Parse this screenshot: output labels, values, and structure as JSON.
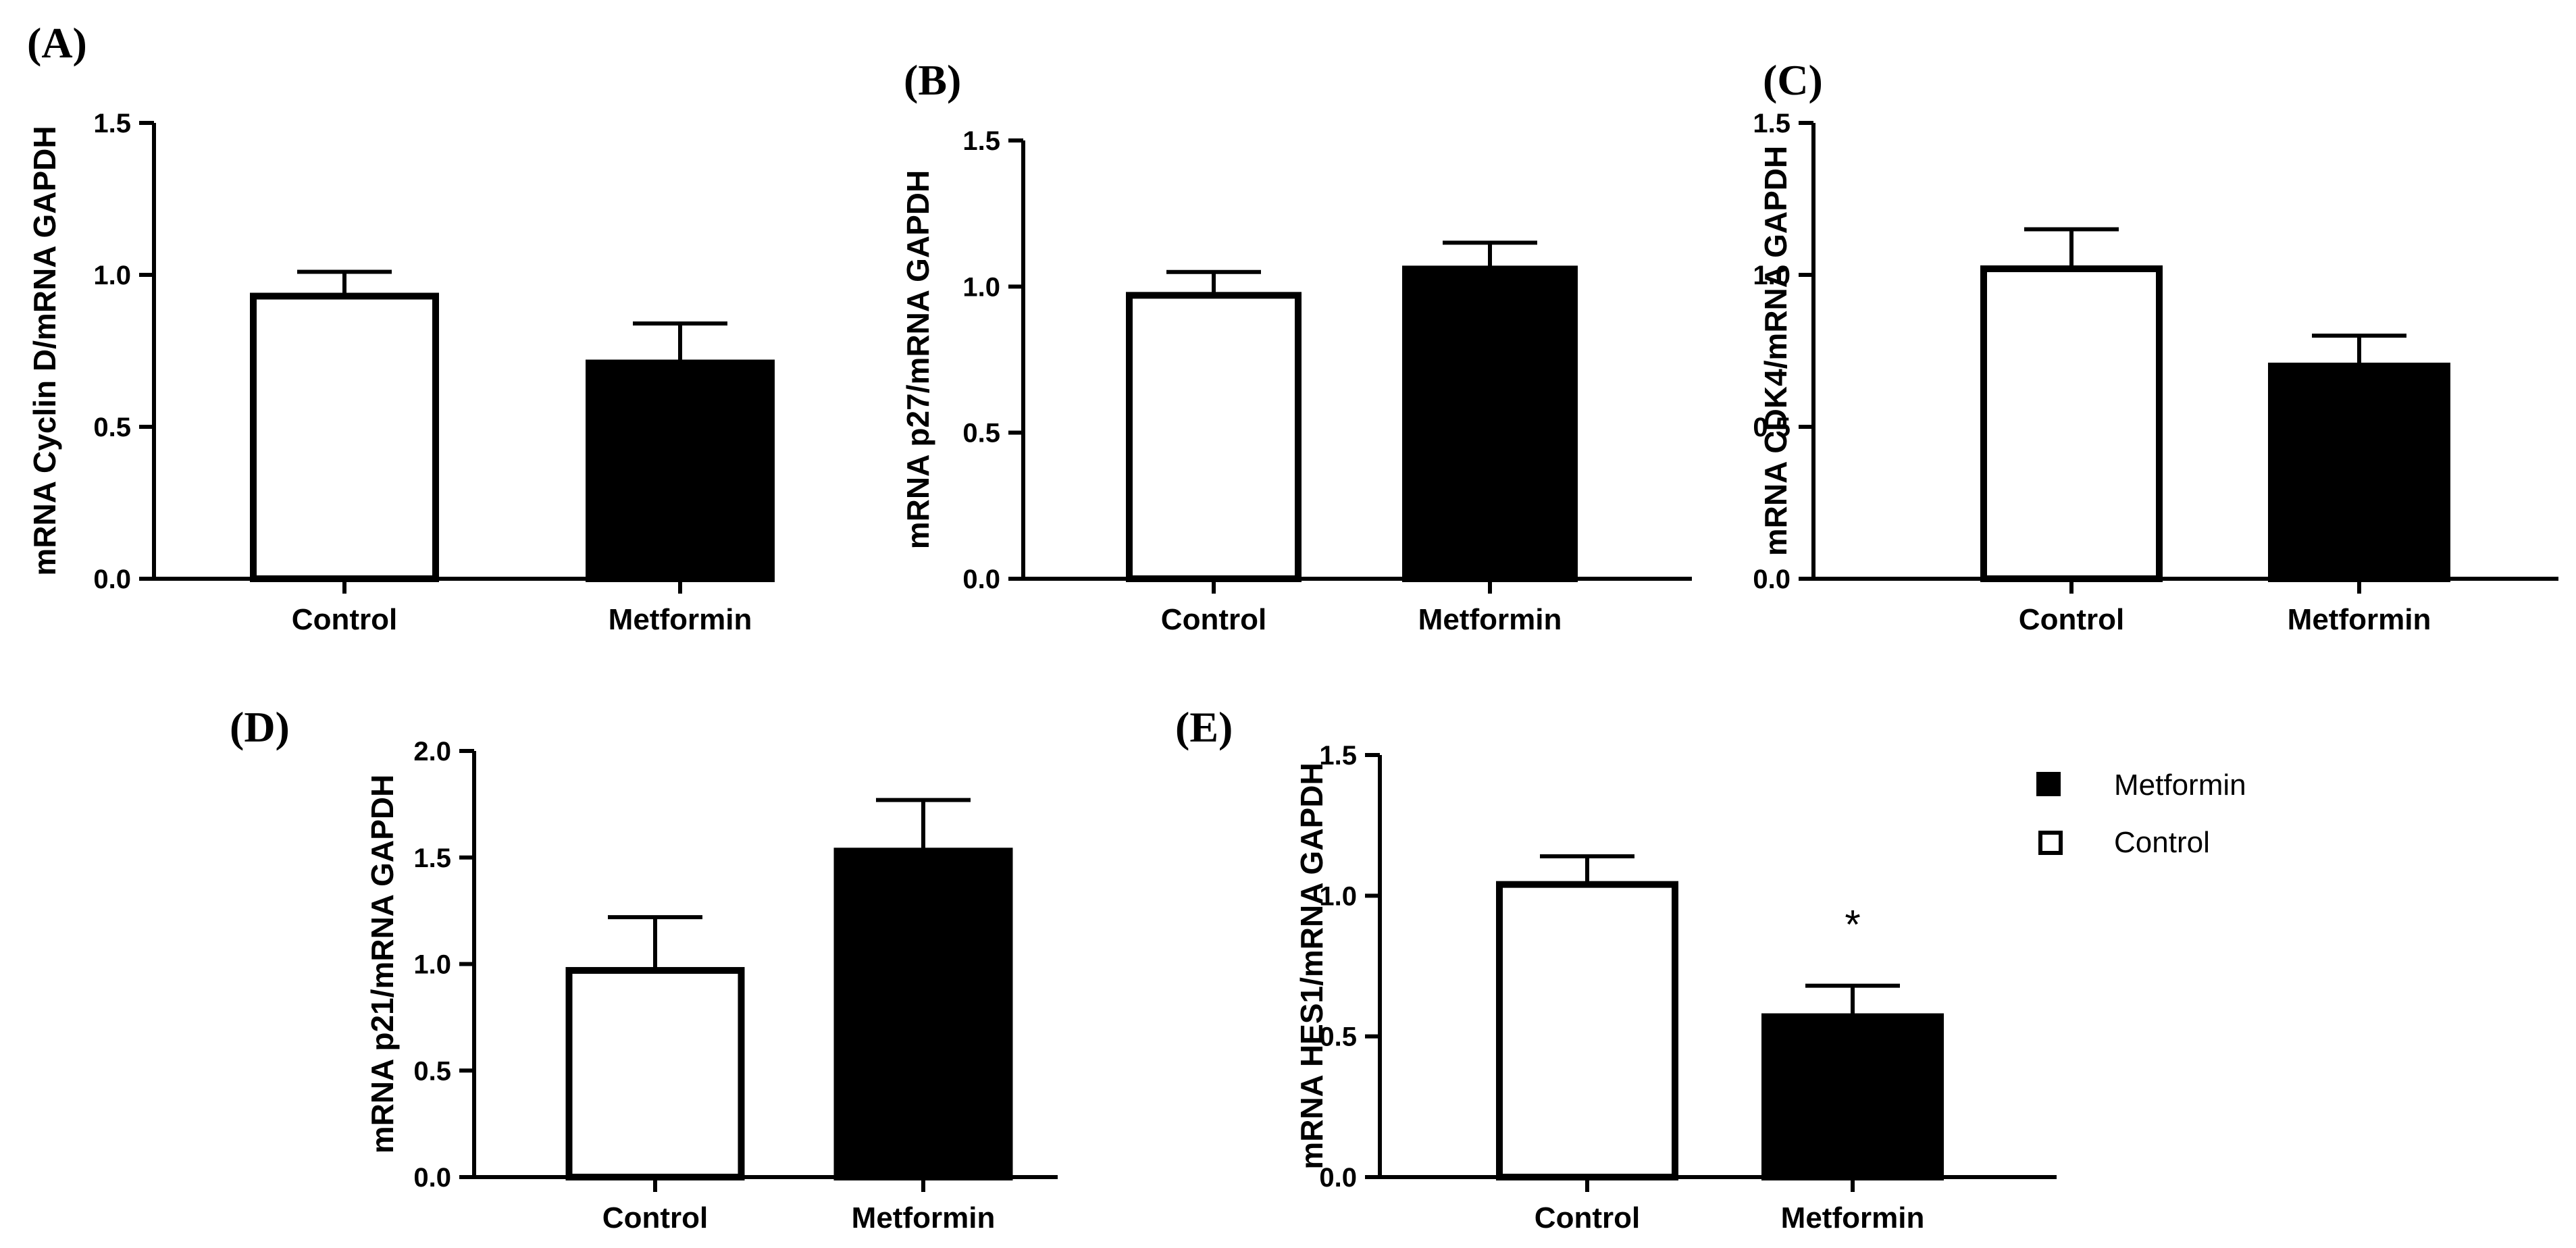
{
  "legend": {
    "entries": [
      {
        "name": "Metformin",
        "fill": "#000000"
      },
      {
        "name": "Control",
        "fill": "#ffffff"
      }
    ]
  },
  "chart_data": [
    {
      "id": "A",
      "panel_label": "(A)",
      "type": "bar",
      "categories": [
        "Control",
        "Metformin"
      ],
      "values": [
        0.93,
        0.71
      ],
      "errors": [
        0.08,
        0.13
      ],
      "fills": [
        "#ffffff",
        "#000000"
      ],
      "ylabel": "mRNA Cyclin D/mRNA GAPDH",
      "xlabel": "",
      "ylim": [
        0,
        1.5
      ],
      "yticks": [
        0,
        0.5,
        1.0,
        1.5
      ],
      "ytick_labels": [
        "0.0",
        "0.5",
        "1.0",
        "1.5"
      ],
      "annotations": []
    },
    {
      "id": "B",
      "panel_label": "(B)",
      "type": "bar",
      "categories": [
        "Control",
        "Metformin"
      ],
      "values": [
        0.97,
        1.06
      ],
      "errors": [
        0.08,
        0.09
      ],
      "fills": [
        "#ffffff",
        "#000000"
      ],
      "ylabel": "mRNA p27/mRNA GAPDH",
      "xlabel": "",
      "ylim": [
        0,
        1.5
      ],
      "yticks": [
        0,
        0.5,
        1.0,
        1.5
      ],
      "ytick_labels": [
        "0.0",
        "0.5",
        "1.0",
        "1.5"
      ],
      "annotations": []
    },
    {
      "id": "C",
      "panel_label": "(C)",
      "type": "bar",
      "categories": [
        "Control",
        "Metformin"
      ],
      "values": [
        1.02,
        0.7
      ],
      "errors": [
        0.13,
        0.1
      ],
      "fills": [
        "#ffffff",
        "#000000"
      ],
      "ylabel": "mRNA CDK4/mRNA GAPDH",
      "xlabel": "",
      "ylim": [
        0,
        1.5
      ],
      "yticks": [
        0,
        0.5,
        1.0,
        1.5
      ],
      "ytick_labels": [
        "0.0",
        "0.5",
        "1.0",
        "1.5"
      ],
      "annotations": []
    },
    {
      "id": "D",
      "panel_label": "(D)",
      "type": "bar",
      "categories": [
        "Control",
        "Metformin"
      ],
      "values": [
        0.97,
        1.53
      ],
      "errors": [
        0.25,
        0.24
      ],
      "fills": [
        "#ffffff",
        "#000000"
      ],
      "ylabel": "mRNA p21/mRNA GAPDH",
      "xlabel": "",
      "ylim": [
        0,
        2.0
      ],
      "yticks": [
        0,
        0.5,
        1.0,
        1.5,
        2.0
      ],
      "ytick_labels": [
        "0.0",
        "0.5",
        "1.0",
        "1.5",
        "2.0"
      ],
      "annotations": []
    },
    {
      "id": "E",
      "panel_label": "(E)",
      "type": "bar",
      "categories": [
        "Control",
        "Metformin"
      ],
      "values": [
        1.04,
        0.57
      ],
      "errors": [
        0.1,
        0.11
      ],
      "fills": [
        "#ffffff",
        "#000000"
      ],
      "ylabel": "mRNA HES1/mRNA GAPDH",
      "xlabel": "",
      "ylim": [
        0,
        1.5
      ],
      "yticks": [
        0,
        0.5,
        1.0,
        1.5
      ],
      "ytick_labels": [
        "0.0",
        "0.5",
        "1.0",
        "1.5"
      ],
      "annotations": [
        {
          "category": "Metformin",
          "text": "*"
        }
      ]
    }
  ]
}
